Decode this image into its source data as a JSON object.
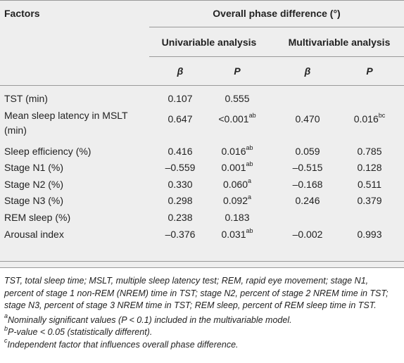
{
  "header": {
    "factors": "Factors",
    "overall": "Overall phase difference (°)",
    "univariable": "Univariable analysis",
    "multivariable": "Multivariable analysis",
    "beta": "β",
    "p": "P"
  },
  "rows": [
    {
      "factor": "TST (min)",
      "factor2": "",
      "ub": "0.107",
      "up": "0.555",
      "ups": "",
      "mb": "",
      "mp": "",
      "mps": ""
    },
    {
      "factor": "Mean sleep latency in MSLT",
      "factor2": "(min)",
      "ub": "0.647",
      "up": "<0.001",
      "ups": "ab",
      "mb": "0.470",
      "mp": "0.016",
      "mps": "bc"
    },
    {
      "factor": "Sleep efficiency (%)",
      "factor2": "",
      "ub": "0.416",
      "up": "0.016",
      "ups": "ab",
      "mb": "0.059",
      "mp": "0.785",
      "mps": ""
    },
    {
      "factor": "Stage N1 (%)",
      "factor2": "",
      "ub": "–0.559",
      "up": "0.001",
      "ups": "ab",
      "mb": "–0.515",
      "mp": "0.128",
      "mps": ""
    },
    {
      "factor": "Stage N2 (%)",
      "factor2": "",
      "ub": "0.330",
      "up": "0.060",
      "ups": "a",
      "mb": "–0.168",
      "mp": "0.511",
      "mps": ""
    },
    {
      "factor": "Stage N3 (%)",
      "factor2": "",
      "ub": "0.298",
      "up": "0.092",
      "ups": "a",
      "mb": "0.246",
      "mp": "0.379",
      "mps": ""
    },
    {
      "factor": "REM sleep (%)",
      "factor2": "",
      "ub": "0.238",
      "up": "0.183",
      "ups": "",
      "mb": "",
      "mp": "",
      "mps": ""
    },
    {
      "factor": "Arousal index",
      "factor2": "",
      "ub": "–0.376",
      "up": "0.031",
      "ups": "ab",
      "mb": "–0.002",
      "mp": "0.993",
      "mps": ""
    }
  ],
  "notes": {
    "abbrev": "TST, total sleep time; MSLT, multiple sleep latency test; REM, rapid eye movement; stage N1, percent of stage 1 non-REM (NREM) time in TST; stage N2, percent of stage 2 NREM time in TST; stage N3, percent of stage 3 NREM time in TST; REM sleep, percent of REM sleep time in TST.",
    "a_mark": "a",
    "a_text": "Nominally significant values (P < 0.1) included in the multivariable model.",
    "b_mark": "b",
    "b_text": "P-value < 0.05 (statistically different).",
    "c_mark": "c",
    "c_text": "Independent factor that influences overall phase difference."
  }
}
